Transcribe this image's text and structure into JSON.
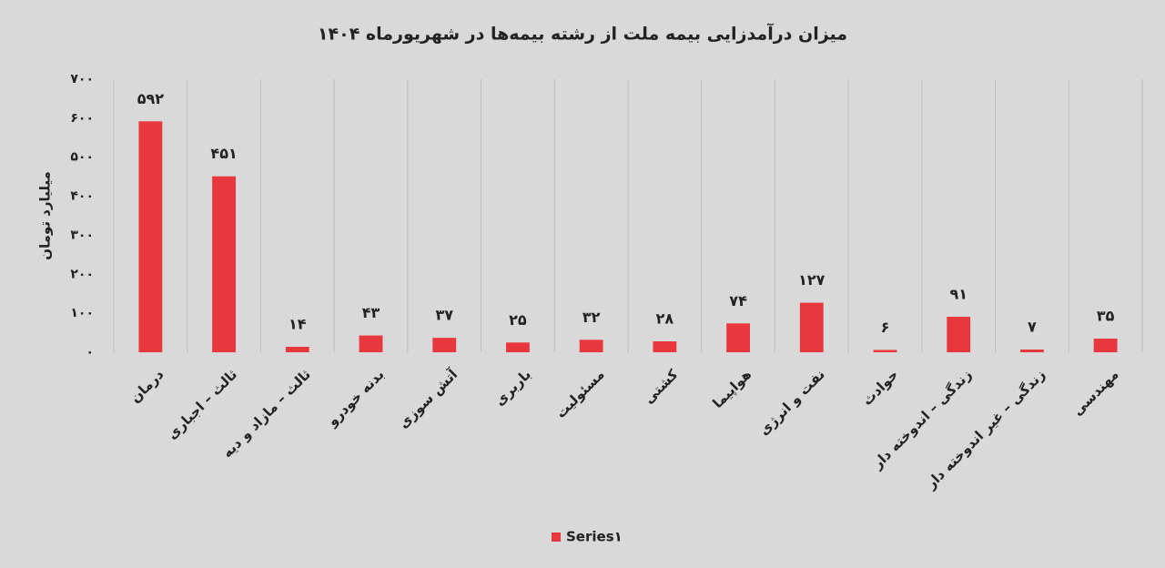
{
  "chart_data": {
    "type": "bar",
    "title": "میزان درآمدزایی بیمه ملت از رشته بیمه‌ها در شهریورماه ۱۴۰۴",
    "y_label": "میلیارد تومان",
    "categories": [
      "درمان",
      "ثالث – اجباری",
      "ثالث – مازاد و دیه",
      "بدنه خودرو",
      "آتش سوزی",
      "باربری",
      "مسئولیت",
      "کشتی",
      "هواپیما",
      "نفت و انرژی",
      "حوادث",
      "زندگی – اندوخته دار",
      "زندگی – غیر اندوخته دار",
      "مهندسی"
    ],
    "series": [
      {
        "name": "Series۱",
        "color": "#e8383d",
        "values": [
          592,
          451,
          14,
          43,
          37,
          25,
          32,
          28,
          74,
          127,
          6,
          91,
          7,
          35
        ],
        "value_labels": [
          "۵۹۲",
          "۴۵۱",
          "۱۴",
          "۴۳",
          "۳۷",
          "۲۵",
          "۳۲",
          "۲۸",
          "۷۴",
          "۱۲۷",
          "۶",
          "۹۱",
          "۷",
          "۳۵"
        ]
      }
    ],
    "ylim": [
      0,
      700
    ],
    "yticks": [
      {
        "value": 0,
        "label": "۰"
      },
      {
        "value": 100,
        "label": "۱۰۰"
      },
      {
        "value": 200,
        "label": "۲۰۰"
      },
      {
        "value": 300,
        "label": "۳۰۰"
      },
      {
        "value": 400,
        "label": "۴۰۰"
      },
      {
        "value": 500,
        "label": "۵۰۰"
      },
      {
        "value": 600,
        "label": "۶۰۰"
      },
      {
        "value": 700,
        "label": "۷۰۰"
      }
    ],
    "grid": false,
    "legend": "bottom"
  }
}
